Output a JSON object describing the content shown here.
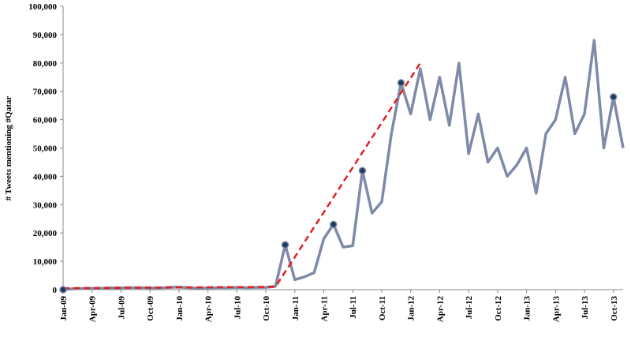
{
  "chart_data": {
    "type": "line",
    "y_label": "# Tweets mentioning #Qatar",
    "x": [
      "Jan-09",
      null,
      null,
      "Apr-09",
      null,
      null,
      "Jul-09",
      null,
      null,
      "Oct-09",
      null,
      null,
      "Jan-10",
      null,
      null,
      "Apr-10",
      null,
      null,
      "Jul-10",
      null,
      null,
      "Oct-10",
      null,
      null,
      "Jan-11",
      null,
      null,
      "Apr-11",
      null,
      null,
      "Jul-11",
      null,
      null,
      "Oct-11",
      null,
      null,
      "Jan-12",
      null,
      null,
      "Apr-12",
      null,
      null,
      "Jul-12",
      null,
      null,
      "Oct-12",
      null,
      null,
      "Jan-13",
      null,
      null,
      "Apr-13",
      null,
      null,
      "Jul-13",
      null,
      null,
      "Oct-13",
      null
    ],
    "series": [
      {
        "color": "#7f8aa8",
        "style": "solid",
        "values": [
          0,
          300,
          400,
          500,
          500,
          600,
          600,
          700,
          700,
          600,
          600,
          800,
          900,
          700,
          500,
          600,
          700,
          700,
          800,
          700,
          800,
          800,
          1200,
          15800,
          3500,
          4500,
          6000,
          18000,
          23000,
          15000,
          15500,
          42000,
          27000,
          31000,
          55000,
          73000,
          62000,
          78000,
          60000,
          75000,
          58000,
          80000,
          48000,
          62000,
          45000,
          50000,
          40000,
          44000,
          50000,
          34000,
          55000,
          60000,
          75000,
          55000,
          62000,
          88000,
          50000,
          68000,
          50000
        ]
      },
      {
        "color": "#e02020",
        "style": "dashed",
        "values": [
          500,
          520,
          550,
          570,
          590,
          610,
          640,
          660,
          680,
          700,
          730,
          750,
          770,
          800,
          820,
          840,
          860,
          890,
          910,
          930,
          950,
          980,
          1000,
          6300,
          11500,
          16800,
          22100,
          27300,
          32600,
          37900,
          43100,
          48400,
          53700,
          58900,
          64200,
          69500,
          74700,
          80000,
          null,
          null,
          null,
          null,
          null,
          null,
          null,
          null,
          null,
          null,
          null,
          null,
          null,
          null,
          null,
          null,
          null,
          null,
          null,
          null,
          null
        ]
      },
      {
        "color": "#1f3a5f",
        "style": "points",
        "values": [
          0,
          null,
          null,
          null,
          null,
          null,
          null,
          null,
          null,
          null,
          null,
          null,
          null,
          null,
          null,
          null,
          null,
          null,
          null,
          null,
          null,
          null,
          null,
          15800,
          null,
          null,
          null,
          null,
          23000,
          null,
          null,
          42000,
          null,
          null,
          null,
          73000,
          null,
          null,
          null,
          null,
          null,
          null,
          null,
          null,
          null,
          null,
          null,
          null,
          null,
          null,
          null,
          null,
          null,
          null,
          null,
          null,
          null,
          68000,
          null
        ]
      }
    ],
    "ylim": [
      0,
      100000
    ],
    "yticks": [
      0,
      {
        "value": 10000,
        "label": "10,000"
      },
      {
        "value": 20000,
        "label": "20,000"
      },
      {
        "value": 30000,
        "label": "30,000"
      },
      {
        "value": 40000,
        "label": "40,000"
      },
      {
        "value": 50000,
        "label": "50,000"
      },
      {
        "value": 60000,
        "label": "60,000"
      },
      {
        "value": 70000,
        "label": "70,000"
      },
      {
        "value": 80000,
        "label": "80,000"
      },
      {
        "value": 90000,
        "label": "90,000"
      },
      {
        "value": 100000,
        "label": "100,000"
      }
    ],
    "grid": false
  }
}
